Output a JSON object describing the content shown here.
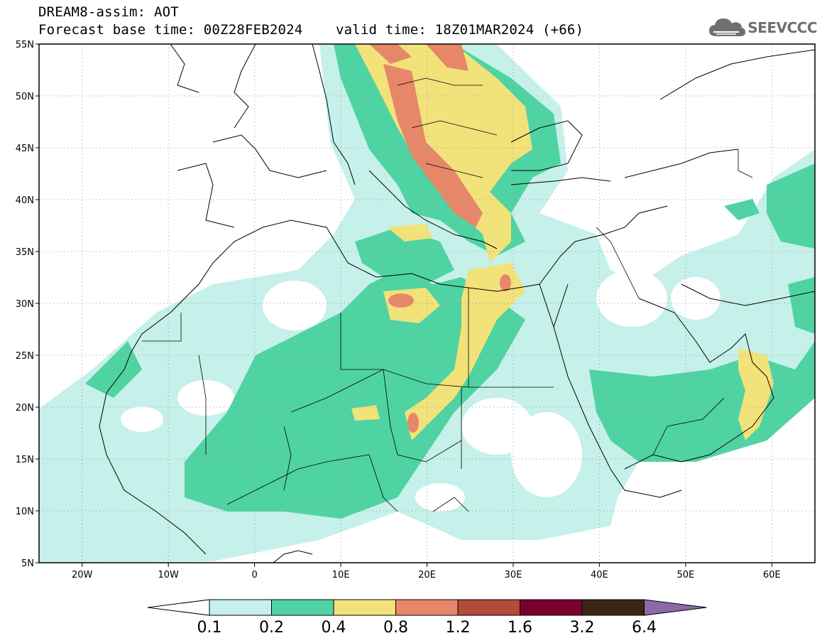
{
  "header": {
    "line1": "DREAM8-assim: AOT",
    "line2": "Forecast base time: 00Z28FEB2024    valid time: 18Z01MAR2024 (+66)"
  },
  "logo": {
    "text": "SEEVCCC",
    "icon": "cloud-icon",
    "color": "#6f6f6f"
  },
  "map": {
    "lat_labels": [
      "55N",
      "50N",
      "45N",
      "40N",
      "35N",
      "30N",
      "25N",
      "20N",
      "15N",
      "10N",
      "5N"
    ],
    "lon_labels": [
      "20W",
      "10W",
      "0",
      "10E",
      "20E",
      "30E",
      "40E",
      "50E",
      "60E"
    ],
    "lat_range": [
      5,
      55
    ],
    "lon_range": [
      -25,
      65
    ],
    "grid": "dotted",
    "variable": "AOT"
  },
  "legend": {
    "levels": [
      "0.1",
      "0.2",
      "0.4",
      "0.8",
      "1.2",
      "1.6",
      "3.2",
      "6.4"
    ],
    "colors": [
      "#ffffff",
      "#c6f0ea",
      "#4fd3a3",
      "#f2e27a",
      "#e7876a",
      "#b24b3a",
      "#7a0030",
      "#3b2414",
      "#8a6aa8"
    ]
  }
}
